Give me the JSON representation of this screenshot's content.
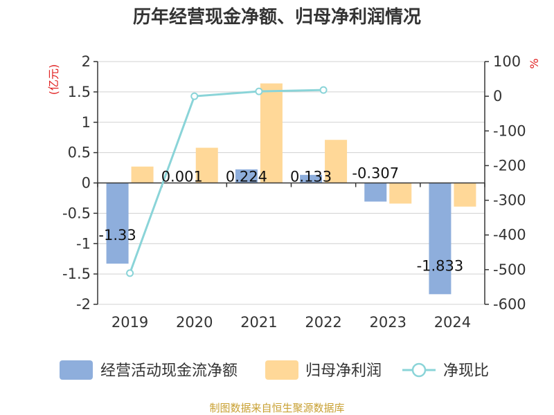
{
  "chart_data": {
    "type": "bar",
    "title": "历年经营现金净额、归母净利润情况",
    "categories": [
      "2019",
      "2020",
      "2021",
      "2022",
      "2023",
      "2024"
    ],
    "y_left": {
      "unit": "(亿元)",
      "ylim": [
        -2,
        2
      ],
      "ticks": [
        "2",
        "1.5",
        "1",
        "0.5",
        "0",
        "-0.5",
        "-1",
        "-1.5",
        "-2"
      ],
      "tick_values": [
        2,
        1.5,
        1,
        0.5,
        0,
        -0.5,
        -1,
        -1.5,
        -2
      ]
    },
    "y_right": {
      "unit": "%",
      "ylim": [
        -600,
        100
      ],
      "ticks": [
        "100",
        "0",
        "-100",
        "-200",
        "-300",
        "-400",
        "-500",
        "-600"
      ],
      "tick_values": [
        100,
        0,
        -100,
        -200,
        -300,
        -400,
        -500,
        -600
      ]
    },
    "series": [
      {
        "name": "经营活动现金流净额",
        "type": "bar",
        "axis": "left",
        "color": "#8eaedc",
        "values": [
          -1.33,
          0.001,
          0.224,
          0.133,
          -0.307,
          -1.833
        ],
        "labels": [
          "-1.33",
          "0.001",
          "0.224",
          "0.133",
          "-0.307",
          "-1.833"
        ]
      },
      {
        "name": "归母净利润",
        "type": "bar",
        "axis": "left",
        "color": "#ffd898",
        "values": [
          0.27,
          0.58,
          1.64,
          0.71,
          -0.34,
          -0.39
        ]
      },
      {
        "name": "净现比",
        "type": "line",
        "axis": "right",
        "color": "#8ad4d8",
        "values": [
          -510,
          0,
          14,
          18,
          null,
          null
        ]
      }
    ],
    "legend_position": "bottom",
    "grid": true
  },
  "footer": {
    "source": "制图数据来自恒生聚源数据库"
  }
}
